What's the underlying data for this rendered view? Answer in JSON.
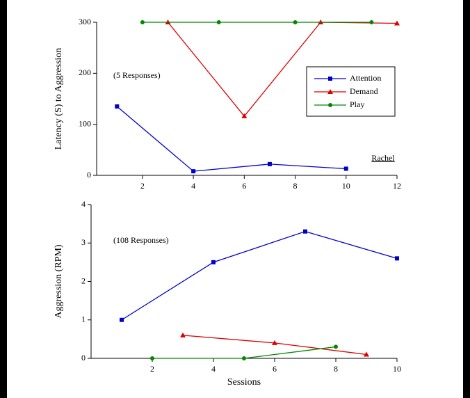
{
  "chart_data": [
    {
      "type": "line",
      "ylabel": "Latency (S) to Aggression",
      "annotation": "(5 Responses)",
      "subject": "Rachel",
      "xlim": [
        0.2,
        12
      ],
      "xticks": [
        2,
        4,
        6,
        8,
        10,
        12
      ],
      "ylim": [
        0,
        300
      ],
      "yticks": [
        0,
        100,
        200,
        300
      ],
      "legend": "upper right",
      "series": [
        {
          "name": "Attention",
          "color": "#0000cc",
          "marker": "square",
          "x": [
            1,
            4,
            7,
            10
          ],
          "values": [
            135,
            8,
            22,
            13
          ]
        },
        {
          "name": "Demand",
          "color": "#dd0000",
          "marker": "triangle",
          "x": [
            3,
            6,
            9,
            12
          ],
          "values": [
            300,
            116,
            300,
            298
          ]
        },
        {
          "name": "Play",
          "color": "#008800",
          "marker": "circle",
          "x": [
            2,
            5,
            8,
            11
          ],
          "values": [
            300,
            300,
            300,
            300
          ]
        }
      ]
    },
    {
      "type": "line",
      "ylabel": "Aggression (RPM)",
      "xlabel": "Sessions",
      "annotation": "(108 Responses)",
      "xlim": [
        0,
        10
      ],
      "xticks": [
        2,
        4,
        6,
        8,
        10
      ],
      "ylim": [
        0,
        4
      ],
      "yticks": [
        0,
        1,
        2,
        3,
        4
      ],
      "series": [
        {
          "name": "Attention",
          "color": "#0000cc",
          "marker": "square",
          "x": [
            1,
            4,
            7,
            10
          ],
          "values": [
            1.0,
            2.5,
            3.3,
            2.6
          ]
        },
        {
          "name": "Demand",
          "color": "#dd0000",
          "marker": "triangle",
          "x": [
            3,
            6,
            9
          ],
          "values": [
            0.6,
            0.4,
            0.1
          ]
        },
        {
          "name": "Play",
          "color": "#008800",
          "marker": "circle",
          "x": [
            2,
            5,
            8
          ],
          "values": [
            0,
            0,
            0.3
          ]
        }
      ]
    }
  ]
}
